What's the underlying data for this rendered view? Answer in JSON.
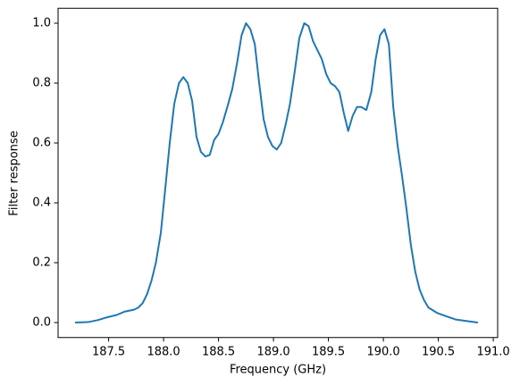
{
  "chart_data": {
    "type": "line",
    "xlabel": "Frequency (GHz)",
    "ylabel": "Filter response",
    "color": "#1f77b4",
    "x": [
      187.195,
      187.32,
      187.4,
      187.49,
      187.57,
      187.65,
      187.73,
      187.77,
      187.81,
      187.85,
      187.89,
      187.93,
      187.975,
      188.016,
      188.056,
      188.097,
      188.14,
      188.18,
      188.22,
      188.26,
      188.3,
      188.34,
      188.38,
      188.42,
      188.46,
      188.5,
      188.54,
      188.58,
      188.625,
      188.67,
      188.71,
      188.75,
      188.79,
      188.83,
      188.87,
      188.91,
      188.95,
      188.99,
      189.03,
      189.07,
      189.11,
      189.15,
      189.19,
      189.235,
      189.28,
      189.32,
      189.36,
      189.4,
      189.44,
      189.48,
      189.52,
      189.56,
      189.6,
      189.64,
      189.68,
      189.72,
      189.76,
      189.8,
      189.845,
      189.89,
      189.93,
      189.97,
      190.01,
      190.05,
      190.09,
      190.13,
      190.17,
      190.21,
      190.25,
      190.29,
      190.33,
      190.37,
      190.41,
      190.49,
      190.58,
      190.66,
      190.74,
      190.86
    ],
    "values": [
      0.0,
      0.002,
      0.008,
      0.018,
      0.025,
      0.037,
      0.043,
      0.05,
      0.065,
      0.095,
      0.14,
      0.2,
      0.3,
      0.45,
      0.6,
      0.73,
      0.8,
      0.82,
      0.8,
      0.74,
      0.62,
      0.57,
      0.555,
      0.56,
      0.61,
      0.63,
      0.67,
      0.72,
      0.78,
      0.87,
      0.96,
      1.0,
      0.98,
      0.93,
      0.8,
      0.68,
      0.62,
      0.59,
      0.578,
      0.6,
      0.66,
      0.73,
      0.83,
      0.95,
      1.0,
      0.99,
      0.94,
      0.91,
      0.88,
      0.83,
      0.8,
      0.79,
      0.77,
      0.7,
      0.64,
      0.69,
      0.72,
      0.72,
      0.71,
      0.77,
      0.88,
      0.96,
      0.98,
      0.93,
      0.72,
      0.59,
      0.49,
      0.38,
      0.26,
      0.17,
      0.11,
      0.075,
      0.05,
      0.032,
      0.02,
      0.01,
      0.006,
      0.0
    ],
    "xlim": [
      187.04,
      191.04
    ],
    "xticks": [
      187.5,
      {
        "value": 188,
        "label": "188.0"
      },
      188.5,
      {
        "value": 189,
        "label": "189.0"
      },
      189.5,
      {
        "value": 190,
        "label": "190.0"
      },
      190.5,
      {
        "value": 191,
        "label": "191.0"
      }
    ],
    "ylim": [
      -0.05,
      1.05
    ],
    "yticks": [
      {
        "value": 0,
        "label": "0.0"
      },
      0.2,
      0.4,
      0.6,
      0.8,
      {
        "value": 1,
        "label": "1.0"
      }
    ]
  }
}
